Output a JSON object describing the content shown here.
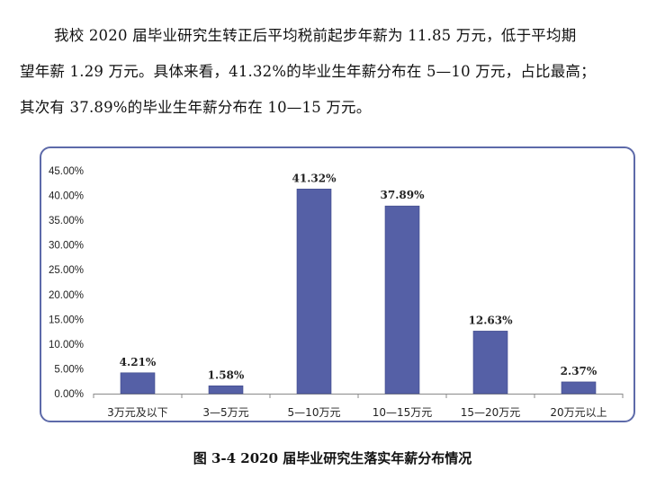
{
  "paragraph": {
    "line1": "我校 2020 届毕业研究生转正后平均税前起步年薪为 11.85 万元，低于平均期",
    "line2": "望年薪 1.29 万元。具体来看，41.32%的毕业生年薪分布在 5—10 万元，占比最高；",
    "line3": "其次有 37.89%的毕业生年薪分布在 10—15 万元。"
  },
  "chart_data": {
    "type": "bar",
    "categories": [
      "3万元及以下",
      "3—5万元",
      "5—10万元",
      "10—15万元",
      "15—20万元",
      "20万元以上"
    ],
    "values": [
      4.21,
      1.58,
      41.32,
      37.89,
      12.63,
      2.37
    ],
    "data_labels": [
      "4.21%",
      "1.58%",
      "41.32%",
      "37.89%",
      "12.63%",
      "2.37%"
    ],
    "yticks": [
      "0.00%",
      "5.00%",
      "10.00%",
      "15.00%",
      "20.00%",
      "25.00%",
      "30.00%",
      "35.00%",
      "40.00%",
      "45.00%"
    ],
    "ylim": [
      0,
      45
    ],
    "bar_color": "#5560a6",
    "grid": false,
    "legend": "none"
  },
  "caption": "图 3-4 2020 届毕业研究生落实年薪分布情况"
}
